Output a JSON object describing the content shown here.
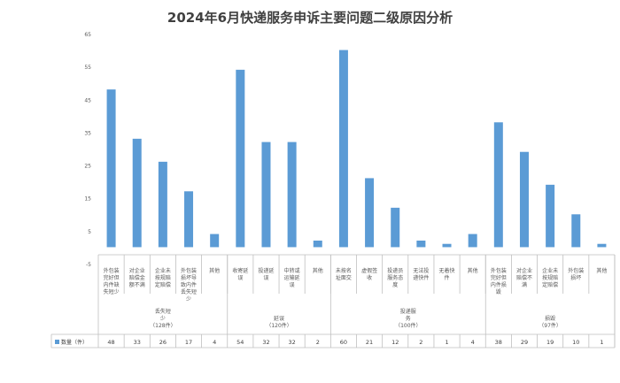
{
  "chart_data": {
    "type": "bar",
    "title": "2024年6月快递服务申诉主要问题二级原因分析",
    "ylim": [
      -5,
      65
    ],
    "yticks": [
      -5,
      5,
      15,
      25,
      35,
      45,
      55,
      65
    ],
    "grid": false,
    "legend_position": "bottom-left",
    "color": "#5b9bd5",
    "series": [
      {
        "name": "数量（件）",
        "values": [
          48,
          33,
          26,
          17,
          4,
          54,
          32,
          32,
          2,
          60,
          21,
          12,
          2,
          1,
          4,
          38,
          29,
          19,
          10,
          1
        ]
      }
    ],
    "categories": [
      {
        "label": "外包装完好但内件缺失短少",
        "lines": [
          "外包装",
          "完好但",
          "内件缺",
          "失短少"
        ]
      },
      {
        "label": "对企业赔偿金额不满",
        "lines": [
          "对企业",
          "赔偿金",
          "额不满"
        ]
      },
      {
        "label": "企业未按规定赔偿",
        "lines": [
          "企业未",
          "按规赔",
          "定赔偿"
        ]
      },
      {
        "label": "外包装损坏导致内件丢失短少",
        "lines": [
          "外包装",
          "损坏导",
          "致内件",
          "丢失短",
          "少"
        ]
      },
      {
        "label": "其他",
        "lines": [
          "其他"
        ]
      },
      {
        "label": "收寄延误",
        "lines": [
          "收寄延",
          "误"
        ]
      },
      {
        "label": "投递延误",
        "lines": [
          "投递延",
          "误"
        ]
      },
      {
        "label": "中转或运输延误",
        "lines": [
          "中转或",
          "运输延",
          "误"
        ]
      },
      {
        "label": "其他",
        "lines": [
          "其他"
        ]
      },
      {
        "label": "未按名址面交",
        "lines": [
          "未按名",
          "址面交"
        ]
      },
      {
        "label": "虚假签收",
        "lines": [
          "虚假签",
          "收"
        ]
      },
      {
        "label": "投递员服务态度",
        "lines": [
          "投递员",
          "服务态",
          "度"
        ]
      },
      {
        "label": "无法投递快件",
        "lines": [
          "无法投",
          "递快件"
        ]
      },
      {
        "label": "无着快件",
        "lines": [
          "无着快",
          "件"
        ]
      },
      {
        "label": "其他",
        "lines": [
          "其他"
        ]
      },
      {
        "label": "外包装完好但内件损毁",
        "lines": [
          "外包装",
          "完好但",
          "内件损",
          "毁"
        ]
      },
      {
        "label": "对企业赔偿金额不满",
        "lines": [
          "对企业",
          "赔偿不",
          "满"
        ]
      },
      {
        "label": "企业未按规定赔偿",
        "lines": [
          "企业未",
          "按规赔",
          "定赔偿"
        ]
      },
      {
        "label": "外包装损坏",
        "lines": [
          "外包装",
          "损坏"
        ]
      },
      {
        "label": "其他",
        "lines": [
          "其他"
        ]
      }
    ],
    "groups": [
      {
        "lines": [
          "丢失短",
          "少",
          "（128件）"
        ],
        "start": 0,
        "count": 5
      },
      {
        "lines": [
          "延误",
          "（120件）"
        ],
        "start": 5,
        "count": 4
      },
      {
        "lines": [
          "投递服",
          "务",
          "（100件）"
        ],
        "start": 9,
        "count": 6
      },
      {
        "lines": [
          "损毁",
          "（97件）"
        ],
        "start": 15,
        "count": 5
      }
    ]
  }
}
